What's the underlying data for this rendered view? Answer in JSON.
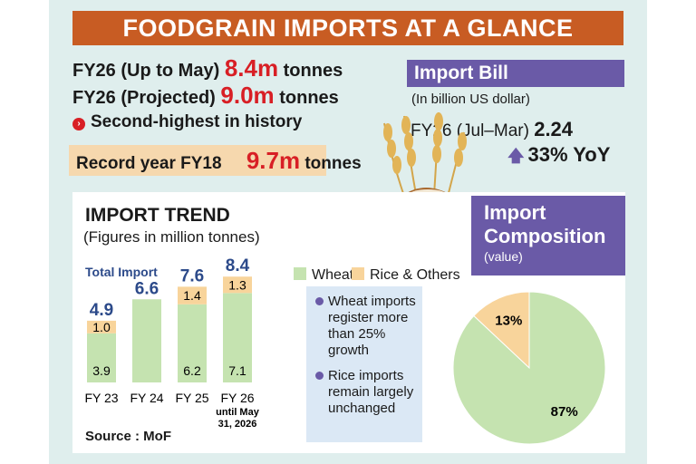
{
  "header": {
    "title": "FOODGRAIN IMPORTS AT A GLANCE"
  },
  "stats": {
    "fy26_to_may": {
      "label": "FY26 (Up to May)",
      "value": "8.4m",
      "unit": "tonnes"
    },
    "fy26_projected": {
      "label": "FY26 (Projected)",
      "value": "9.0m",
      "unit": "tonnes"
    },
    "note": "Second-highest in history",
    "record": {
      "label": "Record year FY18",
      "value": "9.7m",
      "unit": "tonnes"
    }
  },
  "import_bill": {
    "title": "Import Bill",
    "subtitle": "(In billion US dollar)",
    "period": "FY26 (Jul–Mar)",
    "value": "2.24",
    "yoy": "33% YoY"
  },
  "trend": {
    "title": "IMPORT TREND",
    "subtitle": "(Figures in million tonnes)",
    "total_label": "Total Import",
    "legend": [
      "Wheat",
      "Rice & Others"
    ],
    "notes": [
      "Wheat imports register more than 25% growth",
      "Rice imports remain largely unchanged"
    ],
    "source": "Source : MoF"
  },
  "composition": {
    "title_line1": "Import",
    "title_line2": "Composition",
    "subtitle": "(value)"
  },
  "colors": {
    "wheat": "#c5e3b0",
    "rice": "#f8d49b",
    "accent_red": "#d81f25",
    "purple": "#6a5aa7",
    "orange": "#c85c23"
  },
  "chart_data": [
    {
      "type": "bar",
      "stacked": true,
      "title": "IMPORT TREND",
      "ylabel": "",
      "categories": [
        "FY 23",
        "FY 24",
        "FY 25",
        "FY 26"
      ],
      "category_notes": [
        "",
        "",
        "",
        "until May 31, 2026"
      ],
      "totals": [
        "4.9",
        "6.6",
        "7.6",
        "8.4"
      ],
      "series": [
        {
          "name": "Wheat",
          "values": [
            3.9,
            6.6,
            6.2,
            7.1
          ],
          "labels": [
            "3.9",
            "",
            "6.2",
            "7.1"
          ]
        },
        {
          "name": "Rice & Others",
          "values": [
            1.0,
            0,
            1.4,
            1.3
          ],
          "labels": [
            "1.0",
            "",
            "1.4",
            "1.3"
          ]
        }
      ]
    },
    {
      "type": "pie",
      "title": "Import Composition",
      "slices": [
        {
          "name": "Wheat",
          "value": 87,
          "label": "87%"
        },
        {
          "name": "Rice & Others",
          "value": 13,
          "label": "13%"
        }
      ]
    }
  ]
}
